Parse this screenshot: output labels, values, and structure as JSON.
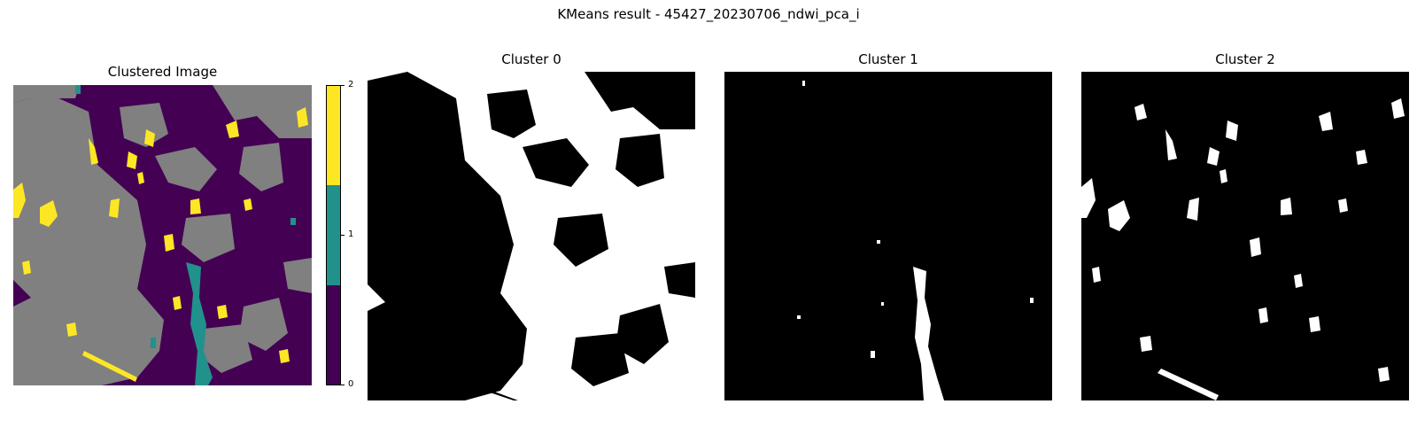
{
  "figure": {
    "suptitle": "KMeans result - 45427_20230706_ndwi_pca_i"
  },
  "chart_data": [
    {
      "type": "heatmap",
      "title": "Clustered Image",
      "description_values": [
        0,
        1,
        2
      ],
      "colormap": "viridis",
      "masked_color": "#808080",
      "colorbar": {
        "ticks": [
          "0",
          "1",
          "2"
        ],
        "colors": [
          "#440154",
          "#21918c",
          "#fde725"
        ]
      }
    },
    {
      "type": "heatmap",
      "title": "Cluster 0",
      "colors": [
        "#000000",
        "#ffffff"
      ]
    },
    {
      "type": "heatmap",
      "title": "Cluster 1",
      "colors": [
        "#000000",
        "#ffffff"
      ]
    },
    {
      "type": "heatmap",
      "title": "Cluster 2",
      "colors": [
        "#000000",
        "#ffffff"
      ]
    }
  ]
}
